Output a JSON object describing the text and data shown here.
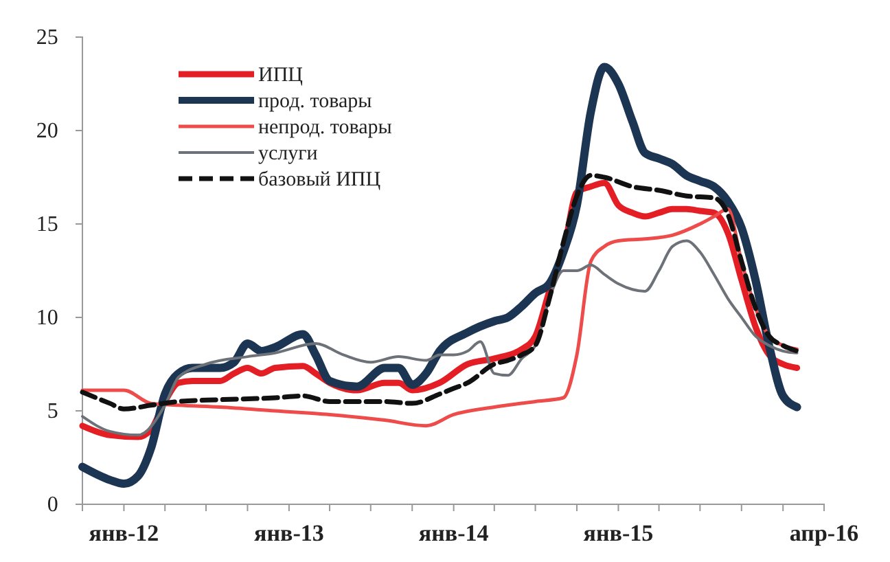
{
  "chart_data": {
    "type": "line",
    "legend": "top left",
    "grid": false,
    "line_style": "solid",
    "xlim": [
      "2011-10",
      "2016-04"
    ],
    "xticks": [
      {
        "value": "2011-10",
        "label": null
      },
      {
        "value": "2012-01",
        "label": "янв-12"
      },
      {
        "value": "2012-04",
        "label": null
      },
      {
        "value": "2012-07",
        "label": null
      },
      {
        "value": "2012-10",
        "label": null
      },
      {
        "value": "2013-01",
        "label": "янв-13"
      },
      {
        "value": "2013-04",
        "label": null
      },
      {
        "value": "2013-07",
        "label": null
      },
      {
        "value": "2013-10",
        "label": null
      },
      {
        "value": "2014-01",
        "label": "янв-14"
      },
      {
        "value": "2014-04",
        "label": null
      },
      {
        "value": "2014-07",
        "label": null
      },
      {
        "value": "2014-10",
        "label": null
      },
      {
        "value": "2015-01",
        "label": "янв-15"
      },
      {
        "value": "2015-04",
        "label": null
      },
      {
        "value": "2015-07",
        "label": null
      },
      {
        "value": "2015-10",
        "label": null
      },
      {
        "value": "2016-01",
        "label": null
      },
      {
        "value": "2016-04",
        "label": "апр-16"
      }
    ],
    "ylim": [
      0,
      25
    ],
    "yticks": [
      0,
      5,
      10,
      15,
      20,
      25
    ],
    "series": [
      {
        "name": "ИПЦ",
        "color": "#e31e24",
        "x": [
          "2011-10",
          "2011-12",
          "2012-02",
          "2012-03",
          "2012-04",
          "2012-05",
          "2012-06",
          "2012-08",
          "2012-09",
          "2012-10",
          "2012-11",
          "2012-12",
          "2013-02",
          "2013-03",
          "2013-04",
          "2013-06",
          "2013-08",
          "2013-09",
          "2013-10",
          "2013-12",
          "2014-02",
          "2014-04",
          "2014-06",
          "2014-07",
          "2014-08",
          "2014-09",
          "2014-10",
          "2014-11",
          "2014-12",
          "2015-01",
          "2015-02",
          "2015-03",
          "2015-04",
          "2015-05",
          "2015-06",
          "2015-07",
          "2015-08",
          "2015-09",
          "2015-10",
          "2015-11",
          "2015-12",
          "2016-01",
          "2016-02"
        ],
        "values": [
          4.2,
          3.7,
          3.6,
          4.0,
          5.5,
          6.5,
          6.6,
          6.6,
          7.0,
          7.3,
          7.0,
          7.3,
          7.4,
          7.0,
          6.5,
          6.1,
          6.5,
          6.5,
          6.1,
          6.5,
          7.5,
          7.8,
          8.3,
          9.0,
          11.4,
          13.5,
          16.7,
          17.0,
          17.2,
          16.0,
          15.6,
          15.4,
          15.6,
          15.8,
          15.8,
          15.7,
          15.6,
          14.5,
          12.0,
          9.5,
          8.0,
          7.5,
          7.3
        ]
      },
      {
        "name": "прод. товары",
        "color": "#1c3553",
        "x": [
          "2011-10",
          "2011-12",
          "2012-01",
          "2012-02",
          "2012-03",
          "2012-04",
          "2012-05",
          "2012-06",
          "2012-08",
          "2012-09",
          "2012-10",
          "2012-11",
          "2012-12",
          "2013-02",
          "2013-03",
          "2013-04",
          "2013-06",
          "2013-08",
          "2013-09",
          "2013-10",
          "2013-11",
          "2013-12",
          "2014-02",
          "2014-04",
          "2014-05",
          "2014-06",
          "2014-07",
          "2014-08",
          "2014-09",
          "2014-10",
          "2014-11",
          "2014-12",
          "2015-01",
          "2015-02",
          "2015-03",
          "2015-04",
          "2015-05",
          "2015-06",
          "2015-07",
          "2015-08",
          "2015-09",
          "2015-10",
          "2015-11",
          "2015-12",
          "2016-01",
          "2016-02"
        ],
        "values": [
          2.0,
          1.3,
          1.1,
          1.5,
          3.0,
          5.9,
          7.0,
          7.3,
          7.3,
          7.6,
          8.6,
          8.2,
          8.4,
          9.1,
          8.0,
          6.6,
          6.3,
          7.3,
          7.3,
          6.4,
          7.0,
          8.2,
          9.2,
          9.8,
          10.0,
          10.6,
          11.3,
          11.8,
          13.5,
          16.0,
          21.0,
          23.4,
          22.5,
          20.5,
          18.8,
          18.5,
          18.2,
          17.6,
          17.3,
          17.0,
          16.2,
          14.8,
          12.0,
          8.5,
          5.8,
          5.2
        ]
      },
      {
        "name": "непрод. товары",
        "color": "#ee4b4b",
        "x": [
          "2011-10",
          "2012-01",
          "2012-03",
          "2012-05",
          "2012-08",
          "2012-12",
          "2013-04",
          "2013-08",
          "2013-11",
          "2014-01",
          "2014-04",
          "2014-07",
          "2014-09",
          "2014-10",
          "2014-11",
          "2014-12",
          "2015-01",
          "2015-03",
          "2015-05",
          "2015-07",
          "2015-08",
          "2015-09",
          "2015-10",
          "2015-11",
          "2015-12",
          "2016-01",
          "2016-02"
        ],
        "values": [
          6.1,
          6.1,
          5.4,
          5.3,
          5.2,
          5.0,
          4.8,
          4.5,
          4.2,
          4.8,
          5.2,
          5.5,
          5.7,
          8.0,
          13.0,
          13.8,
          14.1,
          14.2,
          14.4,
          15.0,
          15.4,
          15.8,
          13.0,
          10.5,
          9.0,
          8.5,
          8.3
        ]
      },
      {
        "name": "услуги",
        "color": "#6d7278",
        "x": [
          "2011-10",
          "2011-12",
          "2012-02",
          "2012-04",
          "2012-05",
          "2012-07",
          "2012-10",
          "2012-12",
          "2013-03",
          "2013-05",
          "2013-07",
          "2013-09",
          "2013-11",
          "2013-12",
          "2014-01",
          "2014-02",
          "2014-03",
          "2014-04",
          "2014-05",
          "2014-06",
          "2014-07",
          "2014-08",
          "2014-09",
          "2014-10",
          "2014-11",
          "2014-12",
          "2015-01",
          "2015-02",
          "2015-03",
          "2015-04",
          "2015-05",
          "2015-06",
          "2015-07",
          "2015-08",
          "2015-09",
          "2015-10",
          "2015-11",
          "2015-12",
          "2016-01",
          "2016-02"
        ],
        "values": [
          4.7,
          3.9,
          3.7,
          5.3,
          6.8,
          7.5,
          7.9,
          8.1,
          8.6,
          8.0,
          7.6,
          7.9,
          7.7,
          8.0,
          8.0,
          8.2,
          8.7,
          7.0,
          6.9,
          7.8,
          8.5,
          11.0,
          12.5,
          12.5,
          12.8,
          12.3,
          11.8,
          11.5,
          11.4,
          12.5,
          13.8,
          14.1,
          13.5,
          12.3,
          11.0,
          10.0,
          9.0,
          8.5,
          8.2,
          8.1
        ]
      },
      {
        "name": "базовый ИПЦ",
        "color": "#111111",
        "line_style": "dashed",
        "x": [
          "2011-10",
          "2011-12",
          "2012-01",
          "2012-03",
          "2012-05",
          "2012-08",
          "2012-12",
          "2013-02",
          "2013-04",
          "2013-08",
          "2013-10",
          "2013-12",
          "2014-01",
          "2014-02",
          "2014-04",
          "2014-05",
          "2014-06",
          "2014-07",
          "2014-08",
          "2014-09",
          "2014-10",
          "2014-11",
          "2014-12",
          "2015-02",
          "2015-04",
          "2015-06",
          "2015-08",
          "2015-09",
          "2015-10",
          "2015-11",
          "2015-12",
          "2016-01",
          "2016-02"
        ],
        "values": [
          6.0,
          5.4,
          5.1,
          5.3,
          5.5,
          5.6,
          5.7,
          5.8,
          5.5,
          5.5,
          5.4,
          5.9,
          6.2,
          6.5,
          7.5,
          7.7,
          8.0,
          8.5,
          11.0,
          14.0,
          16.5,
          17.6,
          17.5,
          17.0,
          16.8,
          16.5,
          16.4,
          15.5,
          13.0,
          10.5,
          9.0,
          8.5,
          8.2
        ]
      }
    ]
  }
}
